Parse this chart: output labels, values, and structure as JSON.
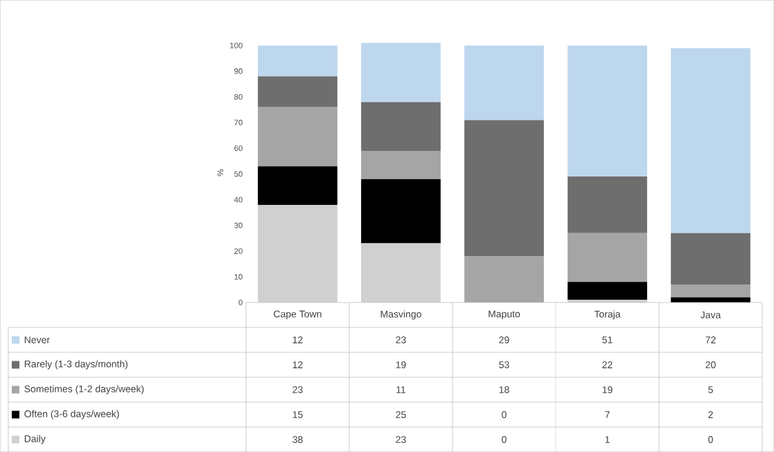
{
  "chart_data": {
    "type": "bar",
    "stacked": true,
    "ylabel": "%",
    "categories": [
      "Cape Town",
      "Masvingo",
      "Maputo",
      "Toraja",
      "Java"
    ],
    "series": [
      {
        "name": "Daily",
        "color": "#d0d0d0",
        "values": [
          38,
          23,
          0,
          1,
          0
        ]
      },
      {
        "name": "Often (3-6 days/week)",
        "color": "#000000",
        "values": [
          15,
          25,
          0,
          7,
          2
        ]
      },
      {
        "name": "Sometimes (1-2 days/week)",
        "color": "#a5a5a5",
        "values": [
          23,
          11,
          18,
          19,
          5
        ]
      },
      {
        "name": "Rarely (1-3 days/month)",
        "color": "#6e6e6e",
        "values": [
          12,
          19,
          53,
          22,
          20
        ]
      },
      {
        "name": "Never",
        "color": "#bdd7ee",
        "values": [
          12,
          23,
          29,
          51,
          72
        ]
      }
    ],
    "ylim": [
      0,
      101
    ],
    "yticks": [
      0,
      10,
      20,
      30,
      40,
      50,
      60,
      70,
      80,
      90,
      100
    ],
    "grid": false,
    "legend": "bottom",
    "data_labels": true
  }
}
